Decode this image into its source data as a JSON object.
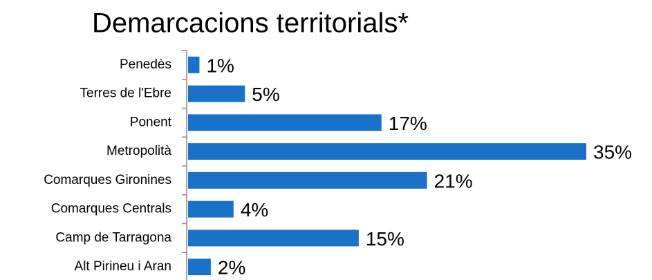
{
  "chart_data": {
    "type": "hbar",
    "title": "Demarcacions territorials*",
    "categories": [
      "Penedès",
      "Terres de l'Ebre",
      "Ponent",
      "Metropolità",
      "Comarques Gironines",
      "Comarques Centrals",
      "Camp de Tarragona",
      "Alt Pirineu i Aran"
    ],
    "values": [
      1,
      5,
      17,
      35,
      21,
      4,
      15,
      2
    ],
    "value_labels": [
      "1%",
      "5%",
      "17%",
      "35%",
      "21%",
      "4%",
      "15%",
      "2%"
    ],
    "color": "#1a72c8"
  }
}
